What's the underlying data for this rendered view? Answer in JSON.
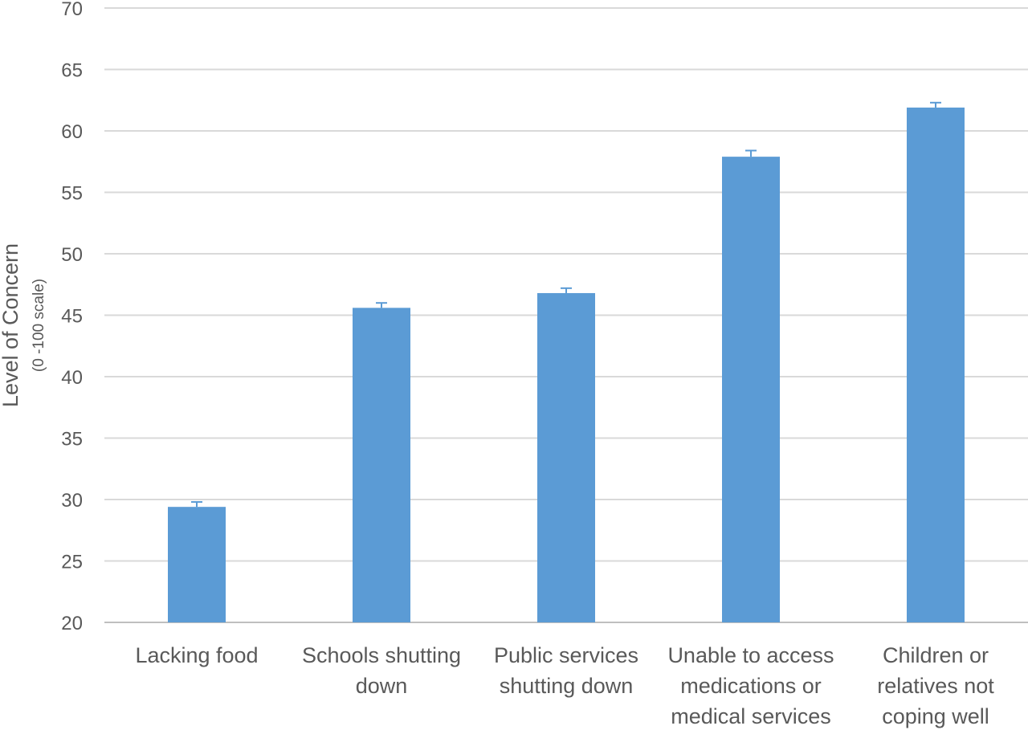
{
  "chart_data": {
    "type": "bar",
    "categories": [
      [
        "Lacking food"
      ],
      [
        "Schools shutting",
        "down"
      ],
      [
        "Public services",
        "shutting down"
      ],
      [
        "Unable to access",
        "medications or",
        "medical services"
      ],
      [
        "Children or",
        "relatives not",
        "coping well"
      ]
    ],
    "values": [
      29.4,
      45.6,
      46.8,
      57.9,
      61.9
    ],
    "error_upper": [
      29.8,
      46.0,
      47.2,
      58.4,
      62.3
    ],
    "ylabel": "Level of Concern",
    "ylabel_sub": "(0 -100 scale)",
    "ylim": [
      20,
      70
    ],
    "yticks": [
      "20",
      "25",
      "30",
      "35",
      "40",
      "45",
      "50",
      "55",
      "60",
      "65",
      "70"
    ],
    "grid": true,
    "bar_color": "#5b9bd5",
    "text_color": "#595959",
    "grid_color": "#d9d9d9"
  }
}
